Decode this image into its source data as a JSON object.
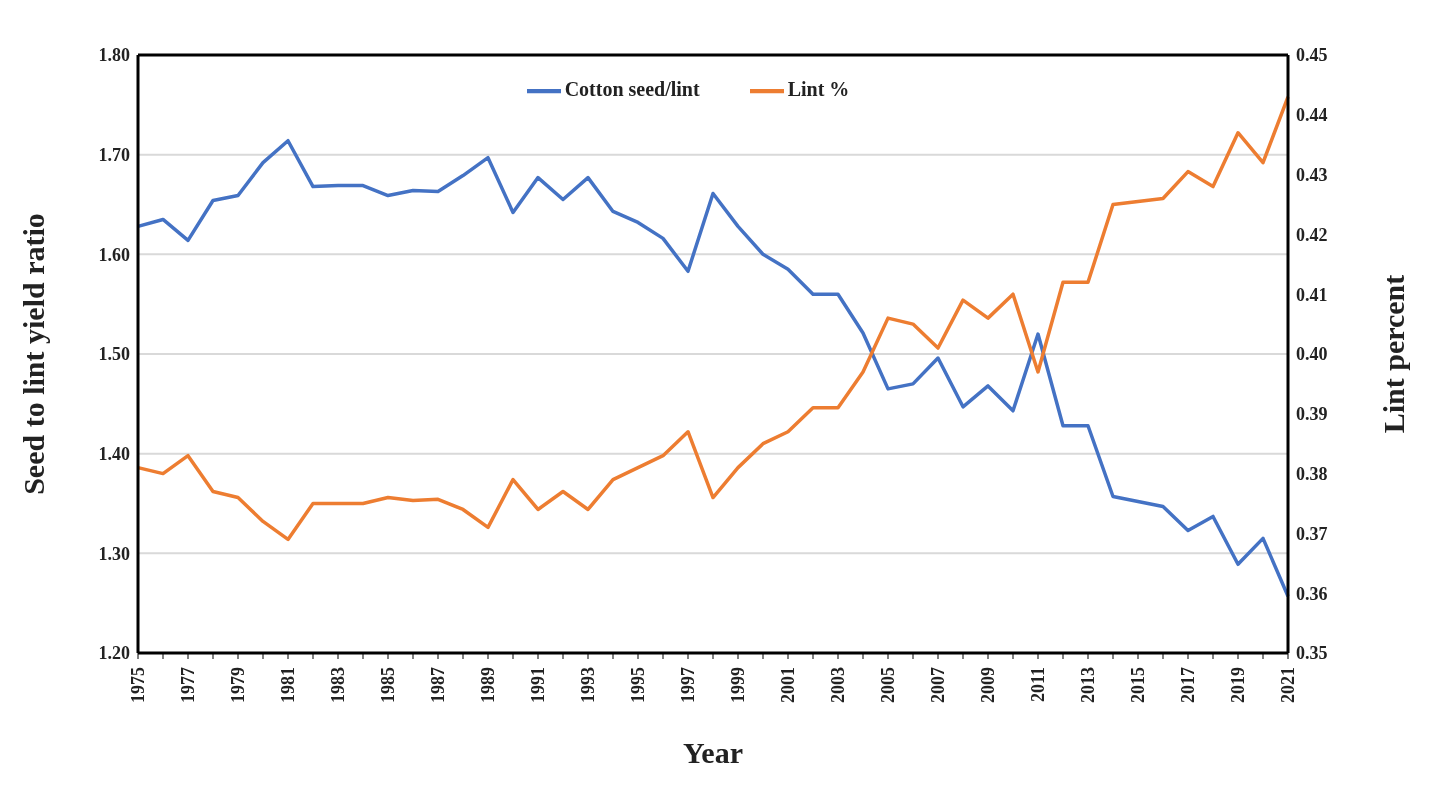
{
  "chart_data": {
    "type": "line",
    "xlabel": "Year",
    "ylabel": "Seed to lint yield ratio",
    "y2label": "Lint percent",
    "categories": [
      "1975",
      null,
      "1977",
      null,
      "1979",
      null,
      "1981",
      null,
      "1983",
      null,
      "1985",
      null,
      "1987",
      null,
      "1989",
      null,
      "1991",
      null,
      "1993",
      null,
      "1995",
      null,
      "1997",
      null,
      "1999",
      null,
      "2001",
      null,
      "2003",
      null,
      "2005",
      null,
      "2007",
      null,
      "2009",
      null,
      "2011",
      null,
      "2013",
      null,
      "2015",
      null,
      "2017",
      null,
      "2019",
      null,
      "2021"
    ],
    "series": [
      {
        "name": "Cotton seed/lint",
        "color": "#4472c4",
        "values": [
          1.628,
          1.635,
          1.614,
          1.654,
          1.659,
          1.692,
          1.714,
          1.668,
          1.669,
          1.669,
          1.659,
          1.664,
          1.663,
          1.679,
          1.697,
          1.642,
          1.677,
          1.655,
          1.677,
          1.643,
          1.632,
          1.616,
          1.583,
          1.661,
          1.628,
          1.6,
          1.585,
          1.56,
          1.56,
          1.521,
          1.465,
          1.47,
          1.496,
          1.447,
          1.468,
          1.443,
          1.52,
          1.428,
          1.428,
          1.357,
          1.352,
          1.347,
          1.323,
          1.337,
          1.289,
          1.315,
          1.257
        ]
      },
      {
        "name": "Lint %",
        "color": "#ed7d31",
        "axis": "y2",
        "values": [
          0.381,
          0.38,
          0.383,
          0.377,
          0.376,
          0.372,
          0.369,
          0.375,
          0.375,
          0.375,
          0.376,
          0.3755,
          0.3757,
          0.374,
          0.371,
          0.379,
          0.374,
          0.377,
          0.374,
          0.379,
          0.381,
          0.383,
          0.387,
          0.376,
          0.381,
          0.385,
          0.387,
          0.391,
          0.391,
          0.397,
          0.406,
          0.405,
          0.401,
          0.409,
          0.406,
          0.41,
          0.397,
          0.412,
          0.412,
          0.425,
          0.4255,
          0.426,
          0.4305,
          0.428,
          0.437,
          0.432,
          0.443
        ]
      }
    ],
    "ylim": [
      1.2,
      1.8
    ],
    "yticks": [
      {
        "value": 1.2,
        "label": "1.20"
      },
      {
        "value": 1.3,
        "label": "1.30"
      },
      {
        "value": 1.4,
        "label": "1.40"
      },
      {
        "value": 1.5,
        "label": "1.50"
      },
      {
        "value": 1.6,
        "label": "1.60"
      },
      {
        "value": 1.7,
        "label": "1.70"
      },
      {
        "value": 1.8,
        "label": "1.80"
      }
    ],
    "y2lim": [
      0.35,
      0.45
    ],
    "y2ticks": [
      {
        "value": 0.35,
        "label": "0.35"
      },
      {
        "value": 0.36,
        "label": "0.36"
      },
      {
        "value": 0.37,
        "label": "0.37"
      },
      {
        "value": 0.38,
        "label": "0.38"
      },
      {
        "value": 0.39,
        "label": "0.39"
      },
      {
        "value": 0.4,
        "label": "0.40"
      },
      {
        "value": 0.41,
        "label": "0.41"
      },
      {
        "value": 0.42,
        "label": "0.42"
      },
      {
        "value": 0.43,
        "label": "0.43"
      },
      {
        "value": 0.44,
        "label": "0.44"
      },
      {
        "value": 0.45,
        "label": "0.45"
      }
    ],
    "grid": "y",
    "legend": "top",
    "marker": "none",
    "line_style": "solid"
  }
}
